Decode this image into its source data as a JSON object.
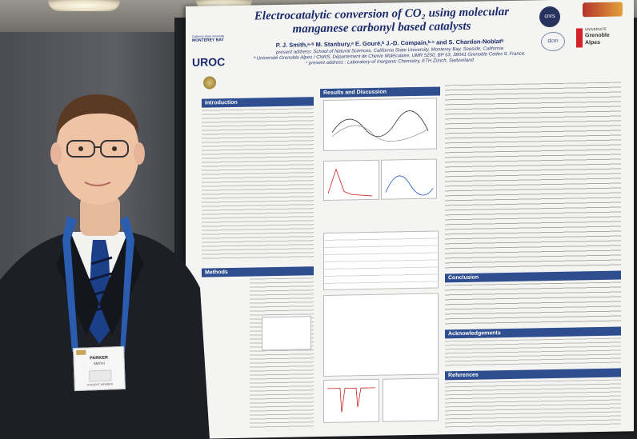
{
  "poster": {
    "title_line1": "Electrocatalytic conversion of CO₂ using molecular",
    "title_line2": "manganese carbonyl based catalysts",
    "authors": "P. J. Smith,ᵃ·ᵇ M. Stanbury,ᵃ E. Gouré,ᵇ J.-D. Compain,ᵇ·ᶜ and S. Chardon-Noblatᵇ",
    "affil1": "present address: School of Natural Sciences, California State University, Monterey Bay, Seaside, California",
    "affil2": "ᵇ Université Grenoble Alpes / CNRS, Département de Chimie Moléculaire, UMR 5250, BP 53, 38041 Grenoble Cedex 9, France.",
    "affil3": "ᶜ present address : Laboratory of Inorganic Chemistry, ETH Zürich, Switzerland",
    "sections": {
      "introduction": "Introduction",
      "results": "Results and Discussion",
      "methods": "Methods",
      "conclusion": "Conclusion",
      "acknowledgements": "Acknowledgements",
      "references": "References"
    },
    "logos": {
      "csumb_line1": "California State University",
      "csumb_line2": "MONTEREY BAY",
      "uroc": "UROC",
      "cnrs": "cnrs",
      "grenoble_line1": "UNIVERSITÉ",
      "grenoble_line2": "Grenoble",
      "grenoble_line3": "Alpes",
      "dcm": "dcm"
    }
  },
  "badge": {
    "name": "PARKER",
    "last": "SMITH",
    "footer": "STUDENT MEMBER"
  },
  "colors": {
    "poster_blue": "#2f4e8f",
    "title_navy": "#1b2b6b",
    "suit": "#1c1f26",
    "tie": "#1c3f8a",
    "lanyard": "#2a5db0"
  }
}
